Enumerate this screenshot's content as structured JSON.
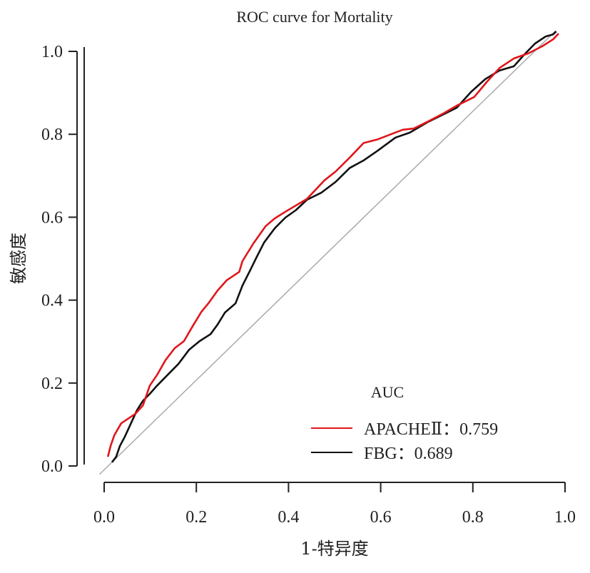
{
  "chart_data": {
    "type": "line",
    "title": "ROC curve for Mortality",
    "xlabel": "1-特异度",
    "ylabel": "敏感度",
    "xlim": [
      0,
      1
    ],
    "ylim": [
      0,
      1
    ],
    "xticks": [
      "0.0",
      "0.2",
      "0.4",
      "0.6",
      "0.8",
      "1.0"
    ],
    "yticks": [
      "0.0",
      "0.2",
      "0.4",
      "0.6",
      "0.8",
      "1.0"
    ],
    "grid": false,
    "reference_line": {
      "name": "chance-diagonal",
      "x": [
        -0.01,
        0.98
      ],
      "y": [
        -0.02,
        1.05
      ],
      "color": "#aaaaaa"
    },
    "legend": {
      "title": "AUC",
      "position": "bottom-right",
      "entries": [
        {
          "label": "APACHEⅡ：0.759",
          "color": "#e0161b"
        },
        {
          "label": "FBG：0.689",
          "color": "#111111"
        }
      ]
    },
    "series": [
      {
        "name": "APACHE II",
        "auc": 0.759,
        "color": "#e0161b",
        "x": [
          0.008,
          0.014,
          0.022,
          0.037,
          0.068,
          0.084,
          0.099,
          0.115,
          0.133,
          0.153,
          0.173,
          0.192,
          0.211,
          0.226,
          0.246,
          0.266,
          0.293,
          0.3,
          0.324,
          0.35,
          0.37,
          0.393,
          0.44,
          0.478,
          0.502,
          0.533,
          0.563,
          0.594,
          0.622,
          0.648,
          0.672,
          0.703,
          0.734,
          0.765,
          0.803,
          0.83,
          0.858,
          0.889,
          0.92,
          0.95,
          0.974,
          0.986
        ],
        "y": [
          0.022,
          0.048,
          0.074,
          0.103,
          0.126,
          0.146,
          0.194,
          0.22,
          0.255,
          0.284,
          0.301,
          0.337,
          0.372,
          0.392,
          0.423,
          0.448,
          0.468,
          0.494,
          0.537,
          0.578,
          0.597,
          0.613,
          0.644,
          0.689,
          0.71,
          0.744,
          0.779,
          0.788,
          0.8,
          0.811,
          0.814,
          0.831,
          0.849,
          0.869,
          0.89,
          0.926,
          0.96,
          0.983,
          0.995,
          1.012,
          1.029,
          1.043
        ]
      },
      {
        "name": "FBG",
        "auc": 0.689,
        "color": "#111111",
        "x": [
          0.017,
          0.026,
          0.034,
          0.045,
          0.057,
          0.071,
          0.084,
          0.099,
          0.115,
          0.138,
          0.161,
          0.184,
          0.207,
          0.231,
          0.246,
          0.262,
          0.285,
          0.3,
          0.316,
          0.331,
          0.347,
          0.37,
          0.393,
          0.416,
          0.44,
          0.471,
          0.502,
          0.533,
          0.563,
          0.594,
          0.632,
          0.663,
          0.703,
          0.734,
          0.765,
          0.796,
          0.827,
          0.858,
          0.889,
          0.912,
          0.935,
          0.958,
          0.974,
          0.981
        ],
        "y": [
          0.009,
          0.022,
          0.048,
          0.071,
          0.1,
          0.134,
          0.157,
          0.174,
          0.194,
          0.22,
          0.246,
          0.28,
          0.301,
          0.318,
          0.341,
          0.37,
          0.392,
          0.435,
          0.47,
          0.504,
          0.539,
          0.573,
          0.599,
          0.617,
          0.642,
          0.659,
          0.685,
          0.719,
          0.737,
          0.761,
          0.792,
          0.804,
          0.83,
          0.847,
          0.864,
          0.902,
          0.933,
          0.954,
          0.964,
          0.993,
          1.019,
          1.036,
          1.041,
          1.048
        ]
      }
    ]
  }
}
